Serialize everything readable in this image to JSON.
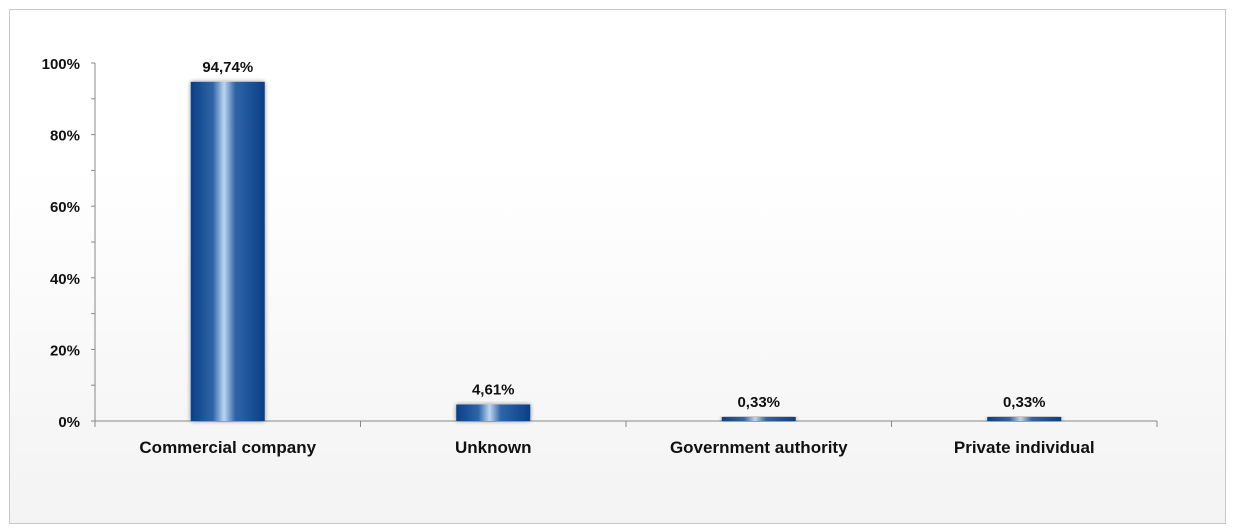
{
  "chart_data": {
    "type": "bar",
    "categories": [
      "Commercial company",
      "Unknown",
      "Government authority",
      "Private individual"
    ],
    "values": [
      94.74,
      4.61,
      0.33,
      0.33
    ],
    "data_labels": [
      "94,74%",
      "4,61%",
      "0,33%",
      "0,33%"
    ],
    "ylim": [
      0,
      100
    ],
    "y_ticks": [
      0,
      20,
      40,
      60,
      80,
      100
    ],
    "y_tick_labels": [
      "0%",
      "20%",
      "40%",
      "60%",
      "80%",
      "100%"
    ],
    "title": "",
    "xlabel": "",
    "ylabel": "",
    "grid": false,
    "legend": "none",
    "bar_color": "#0b3f86",
    "bar_highlight_color": "#bcd6f0"
  }
}
